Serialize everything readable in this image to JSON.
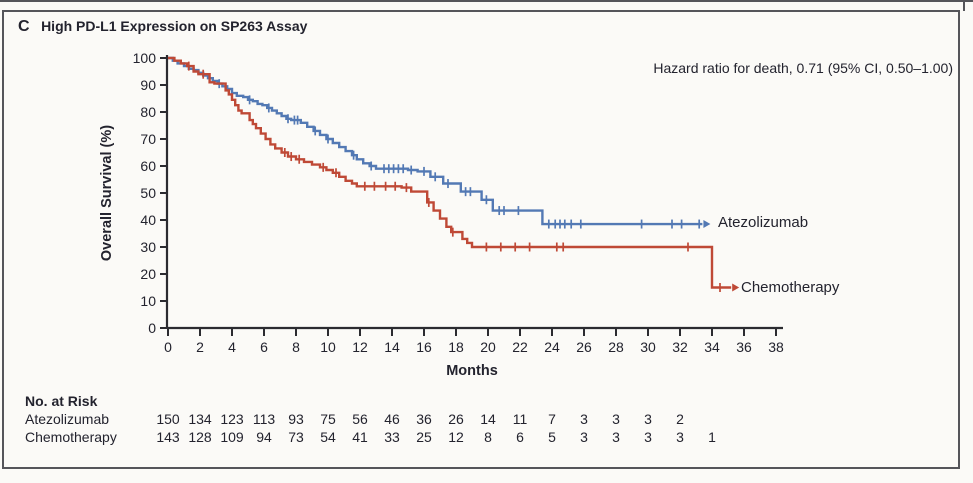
{
  "panel": {
    "letter": "C",
    "title": "High PD-L1 Expression on SP263 Assay",
    "annotation": "Hazard ratio for death, 0.71 (95% CI, 0.50–1.00)"
  },
  "chart_data": {
    "type": "line",
    "subtype": "kaplan-meier-step",
    "title": "High PD-L1 Expression on SP263 Assay",
    "xlabel": "Months",
    "ylabel": "Overall Survival (%)",
    "xlim": [
      0,
      38
    ],
    "ylim": [
      0,
      100
    ],
    "xticks": [
      0,
      2,
      4,
      6,
      8,
      10,
      12,
      14,
      16,
      18,
      20,
      22,
      24,
      26,
      28,
      30,
      32,
      34,
      36,
      38
    ],
    "yticks": [
      0,
      10,
      20,
      30,
      40,
      50,
      60,
      70,
      80,
      90,
      100
    ],
    "grid": false,
    "axis_color": "#2b2b30",
    "series": [
      {
        "name": "Atezolizumab",
        "color": "#5379b4",
        "end_arrow": true,
        "steps": [
          [
            0,
            100
          ],
          [
            0.3,
            99
          ],
          [
            0.6,
            98
          ],
          [
            1.0,
            97
          ],
          [
            1.3,
            96
          ],
          [
            1.6,
            95.5
          ],
          [
            1.9,
            94.5
          ],
          [
            2.2,
            93.5
          ],
          [
            2.5,
            92.5
          ],
          [
            2.8,
            91.5
          ],
          [
            3.1,
            90.5
          ],
          [
            3.4,
            89.5
          ],
          [
            3.7,
            88.5
          ],
          [
            4.0,
            87
          ],
          [
            4.3,
            86
          ],
          [
            4.7,
            85.5
          ],
          [
            5.0,
            84.5
          ],
          [
            5.3,
            84
          ],
          [
            5.6,
            83
          ],
          [
            5.9,
            82.5
          ],
          [
            6.2,
            81.5
          ],
          [
            6.5,
            80.5
          ],
          [
            6.8,
            79.5
          ],
          [
            7.1,
            78.5
          ],
          [
            7.4,
            77.5
          ],
          [
            7.7,
            77
          ],
          [
            8.3,
            76
          ],
          [
            8.7,
            74.5
          ],
          [
            9.1,
            73
          ],
          [
            9.5,
            71.5
          ],
          [
            9.9,
            70
          ],
          [
            10.3,
            68.5
          ],
          [
            10.7,
            67
          ],
          [
            11.1,
            65.5
          ],
          [
            11.5,
            64
          ],
          [
            11.8,
            62.5
          ],
          [
            12.2,
            61
          ],
          [
            12.6,
            60
          ],
          [
            13.0,
            59
          ],
          [
            15.0,
            58.5
          ],
          [
            15.6,
            58
          ],
          [
            16.4,
            56
          ],
          [
            17.2,
            53.5
          ],
          [
            18.3,
            50.5
          ],
          [
            19.6,
            47.5
          ],
          [
            20.3,
            43.5
          ],
          [
            23.4,
            38.5
          ],
          [
            33.4,
            38.5
          ]
        ],
        "censors": [
          [
            3.2,
            90.5
          ],
          [
            5.1,
            84.5
          ],
          [
            6.3,
            81.5
          ],
          [
            7.5,
            77.5
          ],
          [
            7.9,
            77
          ],
          [
            8.1,
            77
          ],
          [
            9.2,
            73
          ],
          [
            10.0,
            70
          ],
          [
            11.6,
            64
          ],
          [
            12.7,
            60
          ],
          [
            13.5,
            59
          ],
          [
            13.8,
            59
          ],
          [
            14.1,
            59
          ],
          [
            14.4,
            59
          ],
          [
            14.7,
            59
          ],
          [
            15.2,
            58.5
          ],
          [
            16.0,
            58
          ],
          [
            16.7,
            56
          ],
          [
            17.5,
            53.5
          ],
          [
            18.6,
            50.5
          ],
          [
            18.9,
            50.5
          ],
          [
            19.9,
            47.5
          ],
          [
            20.7,
            43.5
          ],
          [
            21.0,
            43.5
          ],
          [
            21.9,
            43.5
          ],
          [
            23.8,
            38.5
          ],
          [
            24.2,
            38.5
          ],
          [
            24.5,
            38.5
          ],
          [
            24.8,
            38.5
          ],
          [
            25.2,
            38.5
          ],
          [
            25.8,
            38.5
          ],
          [
            29.6,
            38.5
          ],
          [
            31.5,
            38.5
          ],
          [
            32.1,
            38.5
          ],
          [
            33.2,
            38.5
          ]
        ]
      },
      {
        "name": "Chemotherapy",
        "color": "#bf4936",
        "end_arrow": true,
        "steps": [
          [
            0,
            100
          ],
          [
            0.4,
            99
          ],
          [
            0.8,
            98
          ],
          [
            1.2,
            97
          ],
          [
            1.6,
            95
          ],
          [
            1.9,
            94
          ],
          [
            2.6,
            91
          ],
          [
            2.9,
            90.5
          ],
          [
            3.6,
            88
          ],
          [
            3.8,
            86.5
          ],
          [
            4.0,
            84.5
          ],
          [
            4.2,
            82.5
          ],
          [
            4.4,
            80.5
          ],
          [
            4.6,
            79.5
          ],
          [
            5.1,
            77
          ],
          [
            5.3,
            75.5
          ],
          [
            5.5,
            74
          ],
          [
            5.8,
            72
          ],
          [
            6.1,
            70
          ],
          [
            6.4,
            68
          ],
          [
            6.7,
            66.5
          ],
          [
            7.1,
            65
          ],
          [
            7.5,
            63.5
          ],
          [
            8.0,
            62.5
          ],
          [
            8.5,
            61.5
          ],
          [
            9.0,
            60.5
          ],
          [
            9.5,
            59.5
          ],
          [
            9.9,
            58.5
          ],
          [
            10.3,
            57.5
          ],
          [
            10.7,
            56
          ],
          [
            11.1,
            54.5
          ],
          [
            11.5,
            53.5
          ],
          [
            11.8,
            52.5
          ],
          [
            14.6,
            52
          ],
          [
            15.2,
            50.5
          ],
          [
            16.2,
            46.5
          ],
          [
            16.6,
            43.5
          ],
          [
            17.0,
            40.5
          ],
          [
            17.4,
            37.5
          ],
          [
            17.7,
            35.5
          ],
          [
            18.4,
            33
          ],
          [
            18.7,
            31.5
          ],
          [
            19.0,
            30
          ],
          [
            34.0,
            15
          ],
          [
            35.2,
            15
          ]
        ],
        "censors": [
          [
            1.3,
            97
          ],
          [
            2.2,
            94
          ],
          [
            7.3,
            65
          ],
          [
            7.7,
            63.5
          ],
          [
            8.2,
            62.5
          ],
          [
            9.7,
            59.5
          ],
          [
            10.5,
            57.5
          ],
          [
            12.3,
            52.5
          ],
          [
            12.9,
            52.5
          ],
          [
            13.6,
            52.5
          ],
          [
            14.2,
            52.5
          ],
          [
            14.9,
            52
          ],
          [
            16.3,
            46.5
          ],
          [
            17.8,
            35.5
          ],
          [
            19.9,
            30
          ],
          [
            20.8,
            30
          ],
          [
            21.7,
            30
          ],
          [
            22.6,
            30
          ],
          [
            24.3,
            30
          ],
          [
            24.7,
            30
          ],
          [
            32.5,
            30
          ],
          [
            34.5,
            15
          ]
        ]
      }
    ]
  },
  "risk_table": {
    "heading": "No. at Risk",
    "months": [
      0,
      2,
      4,
      6,
      8,
      10,
      12,
      14,
      16,
      18,
      20,
      22,
      24,
      26,
      28,
      30,
      32,
      34
    ],
    "rows": [
      {
        "name": "Atezolizumab",
        "values": [
          150,
          134,
          123,
          113,
          93,
          75,
          56,
          46,
          36,
          26,
          14,
          11,
          7,
          3,
          3,
          3,
          2
        ]
      },
      {
        "name": "Chemotherapy",
        "values": [
          143,
          128,
          109,
          94,
          73,
          54,
          41,
          33,
          25,
          12,
          8,
          6,
          5,
          3,
          3,
          3,
          3,
          1
        ]
      }
    ]
  }
}
